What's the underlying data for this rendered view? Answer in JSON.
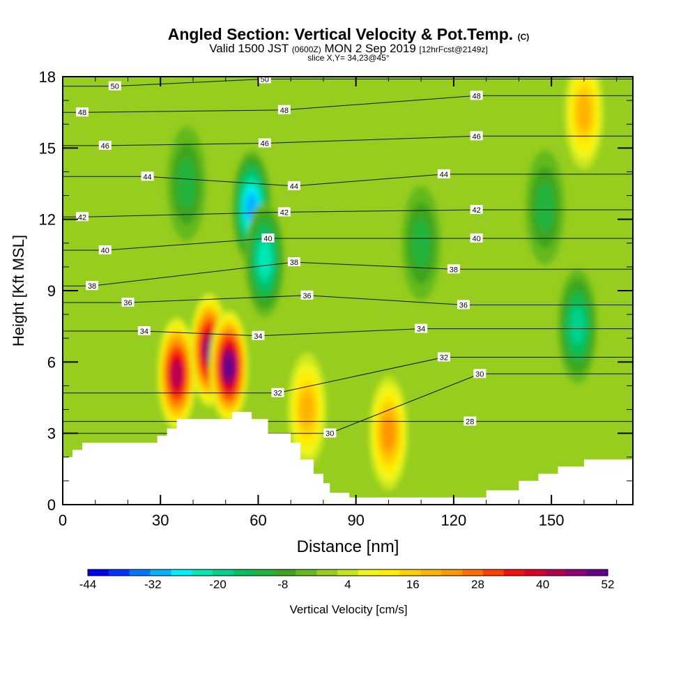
{
  "title": {
    "main": "Angled Section: Vertical Velocity & Pot.Temp.",
    "main_suffix": "(C)",
    "valid_prefix": "Valid 1500 JST",
    "valid_utc": "(0600Z)",
    "valid_date": "MON 2 Sep 2019",
    "valid_fcst": "[12hrFcst@2149z]",
    "slice": "slice X,Y= 34,23@45°"
  },
  "chart_data": {
    "type": "heatmap",
    "xlabel": "Distance [nm]",
    "ylabel": "Height [Kft MSL]",
    "xlim": [
      0,
      175
    ],
    "ylim": [
      0,
      18
    ],
    "xticks": [
      0,
      30,
      60,
      90,
      120,
      150
    ],
    "yticks": [
      0,
      3,
      6,
      9,
      12,
      15,
      18
    ],
    "colorbar": {
      "label": "Vertical Velocity [cm/s]",
      "ticks": [
        "-44",
        "-32",
        "-20",
        "-8",
        "4",
        "16",
        "28",
        "40",
        "52"
      ],
      "levels": [
        -44,
        -40,
        -36,
        -32,
        -28,
        -24,
        -20,
        -16,
        -12,
        -8,
        -4,
        0,
        4,
        8,
        12,
        16,
        20,
        24,
        28,
        32,
        36,
        40,
        44,
        48,
        52
      ],
      "colors": [
        "#0000ee",
        "#0033ff",
        "#0077ff",
        "#00b4ff",
        "#00eeff",
        "#00e8b4",
        "#00d28c",
        "#00c060",
        "#22b43c",
        "#3ea51e",
        "#64b91e",
        "#96cd1e",
        "#c8e61e",
        "#f0f51a",
        "#ffee00",
        "#ffd200",
        "#ffb400",
        "#ff9600",
        "#ff6e00",
        "#ff4000",
        "#f01010",
        "#dc0028",
        "#b40050",
        "#8c0078",
        "#64008c"
      ]
    },
    "theta_contours": [
      {
        "label": "28",
        "x": 125,
        "y": 3.5
      },
      {
        "label": "30",
        "x": 128,
        "y": 5.5
      },
      {
        "label": "30",
        "x": 82,
        "y": 3.0
      },
      {
        "label": "32",
        "x": 117,
        "y": 6.2
      },
      {
        "label": "32",
        "x": 66,
        "y": 4.7
      },
      {
        "label": "34",
        "x": 25,
        "y": 7.3
      },
      {
        "label": "34",
        "x": 60,
        "y": 7.1
      },
      {
        "label": "34",
        "x": 110,
        "y": 7.4
      },
      {
        "label": "36",
        "x": 20,
        "y": 8.5
      },
      {
        "label": "36",
        "x": 75,
        "y": 8.8
      },
      {
        "label": "36",
        "x": 123,
        "y": 8.4
      },
      {
        "label": "38",
        "x": 9,
        "y": 9.2
      },
      {
        "label": "38",
        "x": 71,
        "y": 10.2
      },
      {
        "label": "38",
        "x": 120,
        "y": 9.9
      },
      {
        "label": "40",
        "x": 13,
        "y": 10.7
      },
      {
        "label": "40",
        "x": 63,
        "y": 11.2
      },
      {
        "label": "40",
        "x": 127,
        "y": 11.2
      },
      {
        "label": "42",
        "x": 6,
        "y": 12.1
      },
      {
        "label": "42",
        "x": 68,
        "y": 12.3
      },
      {
        "label": "42",
        "x": 127,
        "y": 12.4
      },
      {
        "label": "44",
        "x": 26,
        "y": 13.8
      },
      {
        "label": "44",
        "x": 71,
        "y": 13.4
      },
      {
        "label": "44",
        "x": 117,
        "y": 13.9
      },
      {
        "label": "46",
        "x": 13,
        "y": 15.1
      },
      {
        "label": "46",
        "x": 62,
        "y": 15.2
      },
      {
        "label": "46",
        "x": 127,
        "y": 15.5
      },
      {
        "label": "48",
        "x": 6,
        "y": 16.5
      },
      {
        "label": "48",
        "x": 68,
        "y": 16.6
      },
      {
        "label": "48",
        "x": 127,
        "y": 17.2
      },
      {
        "label": "50",
        "x": 16,
        "y": 17.6
      },
      {
        "label": "50",
        "x": 62,
        "y": 17.9
      }
    ],
    "velocity_features": [
      {
        "x": 35,
        "y": 5.5,
        "value": 44
      },
      {
        "x": 45,
        "y": 6.5,
        "value": 48
      },
      {
        "x": 51,
        "y": 5.8,
        "value": 52
      },
      {
        "x": 58,
        "y": 12.5,
        "value": -30
      },
      {
        "x": 62,
        "y": 10.3,
        "value": -24
      },
      {
        "x": 100,
        "y": 3.0,
        "value": 24
      },
      {
        "x": 158,
        "y": 7.5,
        "value": -20
      },
      {
        "x": 38,
        "y": 13.5,
        "value": -10
      },
      {
        "x": 110,
        "y": 11.0,
        "value": -10
      },
      {
        "x": 148,
        "y": 12.5,
        "value": -10
      },
      {
        "x": 75,
        "y": 4.0,
        "value": 20
      },
      {
        "x": 160,
        "y": 16.5,
        "value": 18
      }
    ],
    "terrain": [
      [
        0,
        2.0
      ],
      [
        3,
        2.0
      ],
      [
        3,
        2.3
      ],
      [
        6,
        2.3
      ],
      [
        6,
        2.6
      ],
      [
        29,
        2.6
      ],
      [
        29,
        2.9
      ],
      [
        32,
        2.9
      ],
      [
        32,
        3.2
      ],
      [
        35,
        3.2
      ],
      [
        35,
        3.6
      ],
      [
        52,
        3.6
      ],
      [
        52,
        3.9
      ],
      [
        58,
        3.9
      ],
      [
        58,
        3.6
      ],
      [
        63,
        3.6
      ],
      [
        63,
        3.0
      ],
      [
        70,
        3.0
      ],
      [
        70,
        2.6
      ],
      [
        73,
        2.6
      ],
      [
        73,
        1.9
      ],
      [
        77,
        1.9
      ],
      [
        77,
        1.3
      ],
      [
        80,
        1.3
      ],
      [
        80,
        0.9
      ],
      [
        82,
        0.9
      ],
      [
        82,
        0.5
      ],
      [
        88,
        0.5
      ],
      [
        88,
        0.3
      ],
      [
        130,
        0.3
      ],
      [
        130,
        0.6
      ],
      [
        140,
        0.6
      ],
      [
        140,
        1.0
      ],
      [
        146,
        1.0
      ],
      [
        146,
        1.3
      ],
      [
        152,
        1.3
      ],
      [
        152,
        1.6
      ],
      [
        160,
        1.6
      ],
      [
        160,
        1.9
      ],
      [
        175,
        1.9
      ]
    ]
  }
}
